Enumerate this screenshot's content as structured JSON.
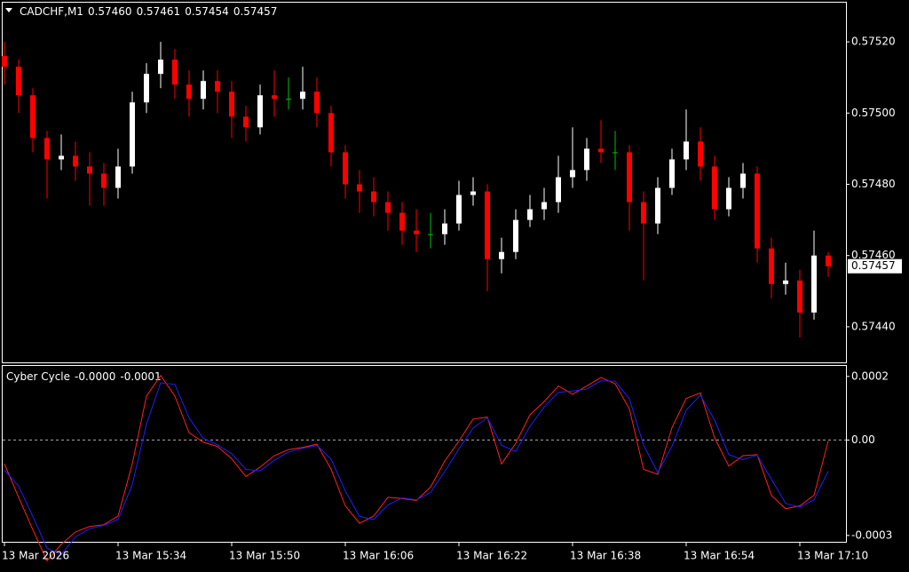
{
  "chart_data": [
    {
      "type": "candlestick",
      "title": "CADCHF,M1",
      "header_values": [
        {
          "value": 0.5746,
          "label": "0.57460"
        },
        {
          "value": 0.57461,
          "label": "0.57461"
        },
        {
          "value": 0.57454,
          "label": "0.57454"
        },
        {
          "value": 0.57457,
          "label": "0.57457"
        }
      ],
      "categories": [
        "13 Mar 2026",
        null,
        null,
        null,
        null,
        null,
        null,
        null,
        "13 Mar 15:34",
        null,
        null,
        null,
        null,
        null,
        null,
        null,
        "13 Mar 15:50",
        null,
        null,
        null,
        null,
        null,
        null,
        null,
        "13 Mar 16:06",
        null,
        null,
        null,
        null,
        null,
        null,
        null,
        "13 Mar 16:22",
        null,
        null,
        null,
        null,
        null,
        null,
        null,
        "13 Mar 16:38",
        null,
        null,
        null,
        null,
        null,
        null,
        null,
        "13 Mar 16:54",
        null,
        null,
        null,
        null,
        null,
        null,
        null,
        "13 Mar 17:10",
        null,
        null
      ],
      "candles": [
        [
          0.57516,
          0.5752,
          0.57508,
          0.57513
        ],
        [
          0.57513,
          0.57515,
          0.575,
          0.57505
        ],
        [
          0.57505,
          0.57507,
          0.57489,
          0.57493
        ],
        [
          0.57493,
          0.57495,
          0.57476,
          0.57487
        ],
        [
          0.57487,
          0.57494,
          0.57484,
          0.57488
        ],
        [
          0.57488,
          0.57492,
          0.57481,
          0.57485
        ],
        [
          0.57485,
          0.57489,
          0.57474,
          0.57483
        ],
        [
          0.57483,
          0.57486,
          0.57474,
          0.57479
        ],
        [
          0.57479,
          0.5749,
          0.57476,
          0.57485
        ],
        [
          0.57485,
          0.57506,
          0.57483,
          0.57503
        ],
        [
          0.57503,
          0.57514,
          0.575,
          0.57511
        ],
        [
          0.57511,
          0.5752,
          0.57507,
          0.57515
        ],
        [
          0.57515,
          0.57518,
          0.57504,
          0.57508
        ],
        [
          0.57508,
          0.57512,
          0.57499,
          0.57504
        ],
        [
          0.57504,
          0.57512,
          0.57501,
          0.57509
        ],
        [
          0.57509,
          0.57512,
          0.575,
          0.57506
        ],
        [
          0.57506,
          0.57509,
          0.57493,
          0.57499
        ],
        [
          0.57499,
          0.57502,
          0.57492,
          0.57496
        ],
        [
          0.57496,
          0.57508,
          0.57494,
          0.57505
        ],
        [
          0.57505,
          0.57512,
          0.57499,
          0.57504
        ],
        [
          0.57504,
          0.5751,
          0.57501,
          0.57504
        ],
        [
          0.57504,
          0.57513,
          0.57501,
          0.57506
        ],
        [
          0.57506,
          0.5751,
          0.57496,
          0.575
        ],
        [
          0.575,
          0.57502,
          0.57485,
          0.57489
        ],
        [
          0.57489,
          0.57491,
          0.57476,
          0.5748
        ],
        [
          0.5748,
          0.57484,
          0.57472,
          0.57478
        ],
        [
          0.57478,
          0.57482,
          0.57471,
          0.57475
        ],
        [
          0.57475,
          0.57478,
          0.57467,
          0.57472
        ],
        [
          0.57472,
          0.57475,
          0.57463,
          0.57467
        ],
        [
          0.57467,
          0.57473,
          0.57461,
          0.57466
        ],
        [
          0.57466,
          0.57472,
          0.57462,
          0.57466
        ],
        [
          0.57466,
          0.57473,
          0.57463,
          0.57469
        ],
        [
          0.57469,
          0.57481,
          0.57467,
          0.57477
        ],
        [
          0.57477,
          0.57482,
          0.57474,
          0.57478
        ],
        [
          0.57478,
          0.5748,
          0.5745,
          0.57459
        ],
        [
          0.57459,
          0.57465,
          0.57455,
          0.57461
        ],
        [
          0.57461,
          0.57473,
          0.57459,
          0.5747
        ],
        [
          0.5747,
          0.57477,
          0.57468,
          0.57473
        ],
        [
          0.57473,
          0.57479,
          0.5747,
          0.57475
        ],
        [
          0.57475,
          0.57488,
          0.57472,
          0.57482
        ],
        [
          0.57482,
          0.57496,
          0.57479,
          0.57484
        ],
        [
          0.57484,
          0.57493,
          0.57481,
          0.5749
        ],
        [
          0.5749,
          0.57498,
          0.57486,
          0.57489
        ],
        [
          0.57489,
          0.57495,
          0.57484,
          0.57489
        ],
        [
          0.57489,
          0.57491,
          0.57467,
          0.57475
        ],
        [
          0.57475,
          0.57478,
          0.57453,
          0.57469
        ],
        [
          0.57469,
          0.57482,
          0.57466,
          0.57479
        ],
        [
          0.57479,
          0.5749,
          0.57477,
          0.57487
        ],
        [
          0.57487,
          0.57501,
          0.57484,
          0.57492
        ],
        [
          0.57492,
          0.57496,
          0.57481,
          0.57485
        ],
        [
          0.57485,
          0.57488,
          0.5747,
          0.57473
        ],
        [
          0.57473,
          0.57482,
          0.57471,
          0.57479
        ],
        [
          0.57479,
          0.57486,
          0.57476,
          0.57483
        ],
        [
          0.57483,
          0.57485,
          0.57458,
          0.57462
        ],
        [
          0.57462,
          0.57465,
          0.57448,
          0.57452
        ],
        [
          0.57452,
          0.57458,
          0.57449,
          0.57453
        ],
        [
          0.57453,
          0.57456,
          0.57437,
          0.57444
        ],
        [
          0.57444,
          0.57467,
          0.57442,
          0.5746
        ],
        [
          0.5746,
          0.57461,
          0.57454,
          0.57457
        ]
      ],
      "up_color": "#ffffff",
      "down_color": "#ff0000",
      "doji_color": "#00c000",
      "ylim": [
        0.5743,
        0.57531
      ],
      "yticks": [
        {
          "value": 0.5752,
          "label": "0.57520"
        },
        {
          "value": 0.575,
          "label": "0.57500"
        },
        {
          "value": 0.5748,
          "label": "0.57480"
        },
        {
          "value": 0.5746,
          "label": "0.57460"
        },
        {
          "value": 0.5744,
          "label": "0.57440"
        }
      ],
      "current_price": {
        "value": 0.57457,
        "label": "0.57457"
      }
    },
    {
      "type": "line",
      "title": "Cyber Cycle",
      "header_values": [
        {
          "value": -3e-06,
          "label": "-0.0000"
        },
        {
          "value": -9.8e-05,
          "label": "-0.0001"
        }
      ],
      "series": [
        {
          "color": "#ff2020",
          "values": [
            -7.5e-05,
            -0.00018,
            -0.000282,
            -0.00038,
            -0.000328,
            -0.000289,
            -0.000272,
            -0.000266,
            -0.000239,
            -7.5e-05,
            0.000138,
            0.000203,
            0.000138,
            2.3e-05,
            -7e-06,
            -2e-05,
            -5.9e-05,
            -0.000115,
            -8.5e-05,
            -4.9e-05,
            -3e-05,
            -2.3e-05,
            -1.3e-05,
            -9.2e-05,
            -0.000207,
            -0.000262,
            -0.000239,
            -0.00018,
            -0.000184,
            -0.00019,
            -0.000148,
            -6.6e-05,
            -3e-06,
            6.6e-05,
            7.2e-05,
            -7.5e-05,
            -1e-05,
            7.9e-05,
            0.000121,
            0.00017,
            0.000144,
            0.00017,
            0.000197,
            0.000177,
            9.8e-05,
            -9.2e-05,
            -0.000108,
            3.9e-05,
            0.000131,
            0.000148,
            7e-06,
            -8.2e-05,
            -4.9e-05,
            -4.6e-05,
            -0.000174,
            -0.000216,
            -0.000207,
            -0.000174,
            -3e-06
          ]
        },
        {
          "color": "#2020ff",
          "values": [
            -9.5e-05,
            -0.000145,
            -0.00024,
            -0.00034,
            -0.00036,
            -0.000305,
            -0.000279,
            -0.000268,
            -0.00025,
            -0.00014,
            5e-05,
            0.00018,
            0.000175,
            7e-05,
            5e-06,
            -1.5e-05,
            -4.3e-05,
            -9.2e-05,
            -9.7e-05,
            -6.4e-05,
            -3.8e-05,
            -2.6e-05,
            -1.7e-05,
            -6e-05,
            -0.00016,
            -0.00024,
            -0.00025,
            -0.000204,
            -0.000182,
            -0.000188,
            -0.000165,
            -9.9e-05,
            -2.8e-05,
            3.8e-05,
            7e-05,
            -1.6e-05,
            -3.6e-05,
            4.3e-05,
            0.000104,
            0.00015,
            0.000154,
            0.00016,
            0.000186,
            0.000185,
            0.00013,
            -1.6e-05,
            -0.000102,
            -2e-05,
            9.4e-05,
            0.000141,
            6.3e-05,
            -4.6e-05,
            -6.2e-05,
            -4.7e-05,
            -0.000123,
            -0.000199,
            -0.000211,
            -0.000188,
            -9.8e-05
          ]
        }
      ],
      "ylim": [
        -0.00032,
        0.000233
      ],
      "yticks": [
        0.0002,
        {
          "value": 0,
          "label": "0.00"
        },
        -0.0003
      ],
      "zero_line": true
    }
  ]
}
